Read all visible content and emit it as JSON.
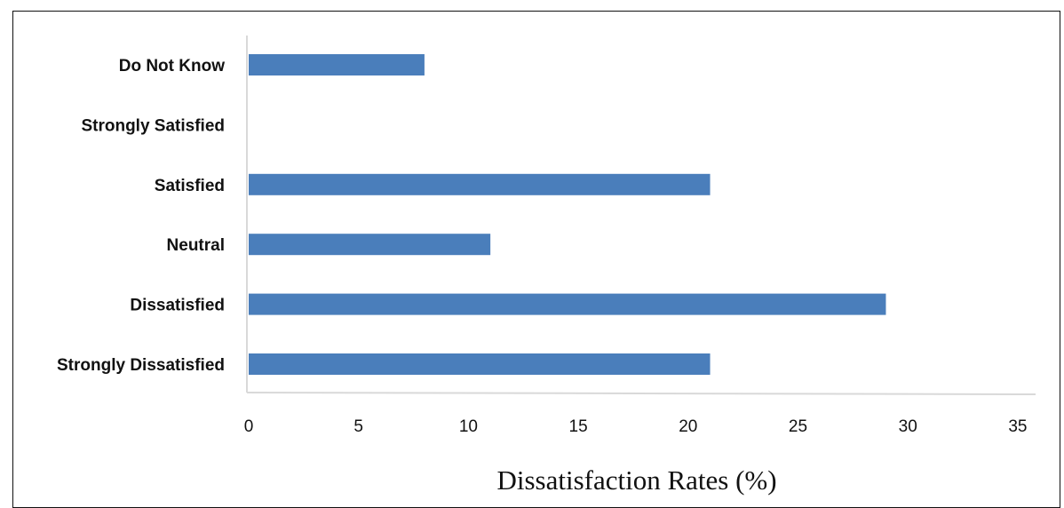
{
  "chart_data": {
    "type": "bar",
    "orientation": "horizontal",
    "categories": [
      "Strongly Dissatisfied",
      "Dissatisfied",
      "Neutral",
      "Satisfied",
      "Strongly Satisfied",
      "Do Not Know"
    ],
    "values": [
      21,
      29,
      11,
      21,
      0,
      8
    ],
    "xlabel": "Dissatisfaction Rates (%)",
    "ylabel": "",
    "xlim": [
      0,
      35
    ],
    "xticks": [
      "0",
      "5",
      "10",
      "15",
      "20",
      "25",
      "30",
      "35"
    ],
    "bar_color": "#4a7ebb",
    "grid": false,
    "legend": "none"
  }
}
